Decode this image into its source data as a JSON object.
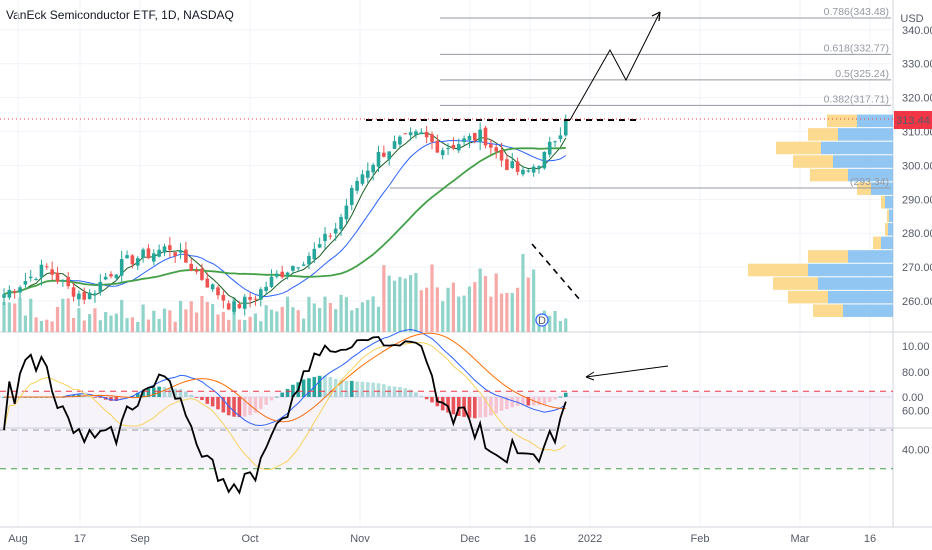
{
  "header": {
    "title": "VanEck Semiconductor ETF, 1D, NASDAQ",
    "currency": "USD"
  },
  "price_pane": {
    "y_ticks": [
      "340.00",
      "330.00",
      "320.00",
      "310.00",
      "300.00",
      "290.00",
      "280.00",
      "270.00",
      "260.00"
    ],
    "y_tick_values": [
      340,
      330,
      320,
      310,
      300,
      290,
      280,
      270,
      260
    ],
    "last_price": "313.44",
    "last_price_color": "#f23645",
    "fib_levels": [
      {
        "label": "0.786(343.48)",
        "value": 343.48
      },
      {
        "label": "0.618(332.77)",
        "value": 332.77
      },
      {
        "label": "0.5(325.24)",
        "value": 325.24
      },
      {
        "label": "0.382(317.71)",
        "value": 317.71
      },
      {
        "label": "(293.34)",
        "value": 293.34
      }
    ],
    "resistance_level": 313.4,
    "dividend_marker": "D"
  },
  "macd_pane": {
    "y_ticks": [
      "10.00",
      "0.00"
    ],
    "y_tick_values": [
      10,
      0
    ]
  },
  "rsi_pane": {
    "y_ticks": [
      "80.00",
      "60.00",
      "40.00"
    ],
    "y_tick_values": [
      80,
      60,
      40
    ],
    "upper_band": 70,
    "mid_band": 50,
    "lower_band": 30
  },
  "x_axis": {
    "labels": [
      "Aug",
      "17",
      "Sep",
      "Oct",
      "Nov",
      "Dec",
      "16",
      "2022",
      "Feb",
      "Mar",
      "16"
    ]
  },
  "colors": {
    "up": "#26a69a",
    "down": "#ef5350",
    "sma_fast": "#1b5e20",
    "ema_blue": "#2962ff",
    "sma_green": "#43a047",
    "macd_line": "#2962ff",
    "signal_line": "#ff6d00",
    "rsi_line": "#000000",
    "rsi_ma": "#f7d35e",
    "vp_up": "#7fbcf0",
    "vp_down": "#fbd47b"
  },
  "chart_data": {
    "type": "candlestick",
    "symbol": "VanEck Semiconductor ETF, 1D, NASDAQ",
    "y_range": [
      254,
      346
    ],
    "series": [
      {
        "date": "Aug",
        "close": 262
      },
      {
        "date": "",
        "close": 266
      },
      {
        "date": "",
        "close": 270
      },
      {
        "date": "17",
        "close": 264
      },
      {
        "date": "",
        "close": 261
      },
      {
        "date": "",
        "close": 268
      },
      {
        "date": "Sep",
        "close": 272
      },
      {
        "date": "",
        "close": 274
      },
      {
        "date": "",
        "close": 276
      },
      {
        "date": "",
        "close": 270
      },
      {
        "date": "",
        "close": 264
      },
      {
        "date": "Oct",
        "close": 258
      },
      {
        "date": "",
        "close": 261
      },
      {
        "date": "",
        "close": 267
      },
      {
        "date": "",
        "close": 271
      },
      {
        "date": "",
        "close": 275
      },
      {
        "date": "",
        "close": 282
      },
      {
        "date": "Nov",
        "close": 296
      },
      {
        "date": "",
        "close": 303
      },
      {
        "date": "",
        "close": 307
      },
      {
        "date": "",
        "close": 309
      },
      {
        "date": "",
        "close": 305
      },
      {
        "date": "Dec",
        "close": 307
      },
      {
        "date": "",
        "close": 309
      },
      {
        "date": "",
        "close": 301
      },
      {
        "date": "16",
        "close": 297
      },
      {
        "date": "",
        "close": 303
      },
      {
        "date": "",
        "close": 313.44
      }
    ]
  }
}
